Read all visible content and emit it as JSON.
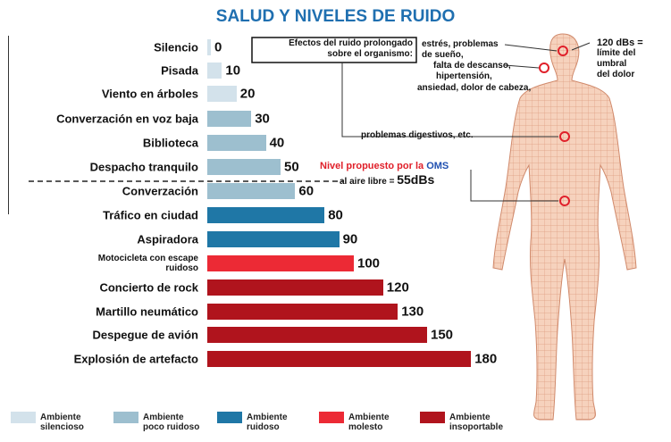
{
  "chart_data": {
    "type": "bar",
    "title": "SALUD Y NIVELES DE RUIDO",
    "categories": [
      "Silencio",
      "Pisada",
      "Viento en árboles",
      "Converzación en voz baja",
      "Biblioteca",
      "Despacho tranquilo",
      "Converzación",
      "Tráfico en ciudad",
      "Aspiradora",
      "Motocicleta con escape ruidoso",
      "Concierto de rock",
      "Martillo neumático",
      "Despegue de avión",
      "Explosión de artefacto"
    ],
    "series": [
      {
        "name": "Ambiente silencioso",
        "color": "#d3e2eb",
        "values": [
          0,
          10,
          20,
          null,
          null,
          null,
          null,
          null,
          null,
          null,
          null,
          null,
          null,
          null
        ]
      },
      {
        "name": "Ambiente poco ruidoso",
        "color": "#9dbfcf",
        "values": [
          null,
          null,
          null,
          30,
          40,
          50,
          60,
          null,
          null,
          null,
          null,
          null,
          null,
          null
        ]
      },
      {
        "name": "Ambiente ruidoso",
        "color": "#1f77a6",
        "values": [
          null,
          null,
          null,
          null,
          null,
          null,
          null,
          80,
          90,
          null,
          null,
          null,
          null,
          null
        ]
      },
      {
        "name": "Ambiente molesto",
        "color": "#ec2a35",
        "values": [
          null,
          null,
          null,
          null,
          null,
          null,
          null,
          null,
          null,
          100,
          null,
          null,
          null,
          null
        ]
      },
      {
        "name": "Ambiente insoportable",
        "color": "#b0141d",
        "values": [
          null,
          null,
          null,
          null,
          null,
          null,
          null,
          null,
          null,
          null,
          120,
          130,
          150,
          180
        ]
      }
    ],
    "annotations": {
      "effects_title": [
        "Efectos del ruido prolongado",
        "sobre el organismo:"
      ],
      "effects": [
        "estrés, problemas",
        "de sueño,",
        "falta de descanso,",
        "hipertensión,",
        "ansiedad, dolor de cabeza,"
      ],
      "digestive": "problemas digestivos, etc.",
      "pain_threshold": [
        "120 dBs =",
        "límite del",
        "umbral",
        "del dolor"
      ],
      "oms": {
        "prefix": "Nivel propuesto por la ",
        "org": "OMS",
        "line2": "al aire libre = ",
        "level": "55dBs"
      }
    }
  }
}
